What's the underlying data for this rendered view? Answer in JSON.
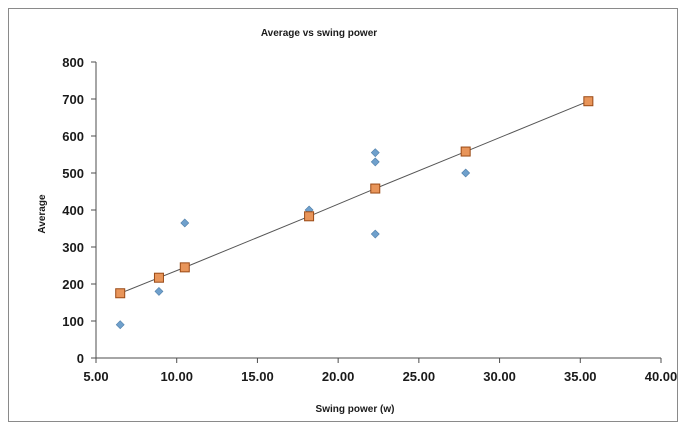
{
  "chart_data": {
    "type": "scatter",
    "title": "Average vs swing power",
    "xlabel": "Swing power (w)",
    "ylabel": "Average",
    "xlim": [
      5.0,
      40.0
    ],
    "ylim": [
      0,
      800
    ],
    "x_ticks": [
      "5.00",
      "10.00",
      "15.00",
      "20.00",
      "25.00",
      "30.00",
      "35.00",
      "40.00"
    ],
    "y_ticks": [
      "0",
      "100",
      "200",
      "300",
      "400",
      "500",
      "600",
      "700",
      "800"
    ],
    "grid": false,
    "legend": "none",
    "series": [
      {
        "marker": "diamond",
        "color": "#6fa0cc",
        "points": [
          {
            "x": 6.5,
            "y": 90
          },
          {
            "x": 8.9,
            "y": 180
          },
          {
            "x": 10.5,
            "y": 365
          },
          {
            "x": 18.2,
            "y": 400
          },
          {
            "x": 22.3,
            "y": 335
          },
          {
            "x": 22.3,
            "y": 530
          },
          {
            "x": 22.3,
            "y": 555
          },
          {
            "x": 27.9,
            "y": 500
          }
        ]
      },
      {
        "marker": "square",
        "color": "#e8955a",
        "line": true,
        "line_color": "#555555",
        "points": [
          {
            "x": 6.5,
            "y": 175
          },
          {
            "x": 8.9,
            "y": 217
          },
          {
            "x": 10.5,
            "y": 245
          },
          {
            "x": 18.2,
            "y": 383
          },
          {
            "x": 22.3,
            "y": 458
          },
          {
            "x": 27.9,
            "y": 558
          },
          {
            "x": 35.5,
            "y": 694
          }
        ]
      }
    ]
  }
}
